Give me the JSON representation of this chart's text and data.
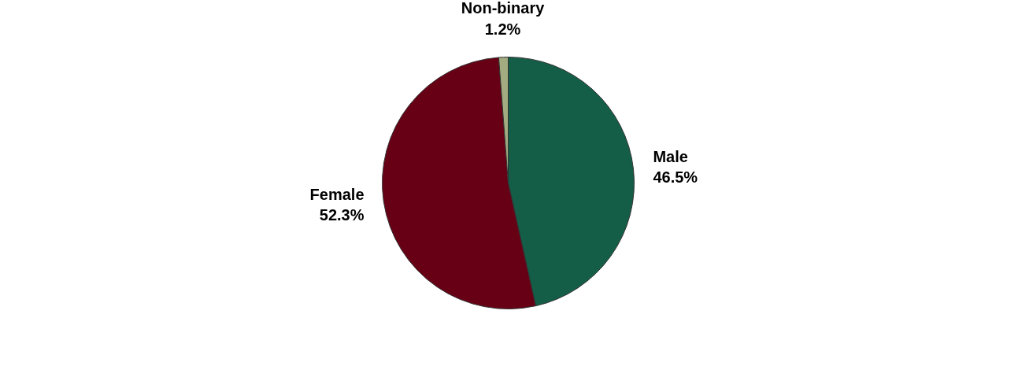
{
  "chart_data": {
    "type": "pie",
    "categories": [
      "Male",
      "Female",
      "Non-binary"
    ],
    "values": [
      46.5,
      52.3,
      1.2
    ],
    "colors": [
      "#145e48",
      "#670015",
      "#a3ab80"
    ],
    "value_labels": [
      "46.5%",
      "52.3%",
      "1.2%"
    ]
  }
}
